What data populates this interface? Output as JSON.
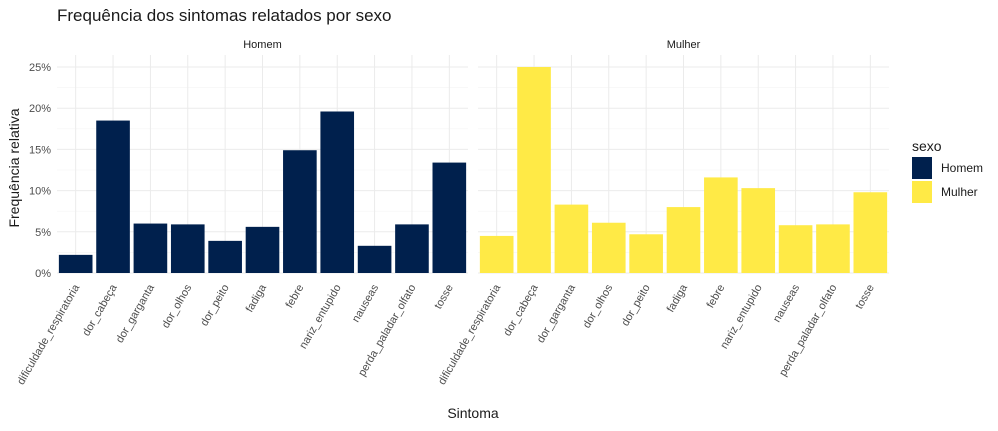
{
  "chart_data": {
    "type": "bar",
    "title": "Frequência dos sintomas relatados por sexo",
    "xlabel": "Sintoma",
    "ylabel": "Frequência relativa",
    "ylim": [
      0,
      0.26
    ],
    "yticks": [
      0,
      0.05,
      0.1,
      0.15,
      0.2,
      0.25
    ],
    "ytick_labels": [
      "0%",
      "5%",
      "10%",
      "15%",
      "20%",
      "25%"
    ],
    "grid": true,
    "legend": {
      "title": "sexo",
      "position": "right"
    },
    "categories": [
      "dificuldade_respiratoria",
      "dor_cabeça",
      "dor_garganta",
      "dor_olhos",
      "dor_peito",
      "fadiga",
      "febre",
      "nariz_entupido",
      "nauseas",
      "perda_paladar_olfato",
      "tosse"
    ],
    "facets": [
      {
        "label": "Homem",
        "series": "Homem",
        "values": [
          0.022,
          0.185,
          0.06,
          0.059,
          0.039,
          0.056,
          0.149,
          0.196,
          0.033,
          0.059,
          0.134
        ]
      },
      {
        "label": "Mulher",
        "series": "Mulher",
        "values": [
          0.045,
          0.25,
          0.083,
          0.061,
          0.047,
          0.08,
          0.116,
          0.103,
          0.058,
          0.059,
          0.098
        ]
      }
    ],
    "series": [
      {
        "name": "Homem",
        "color": "#00204d"
      },
      {
        "name": "Mulher",
        "color": "#ffea46"
      }
    ]
  }
}
